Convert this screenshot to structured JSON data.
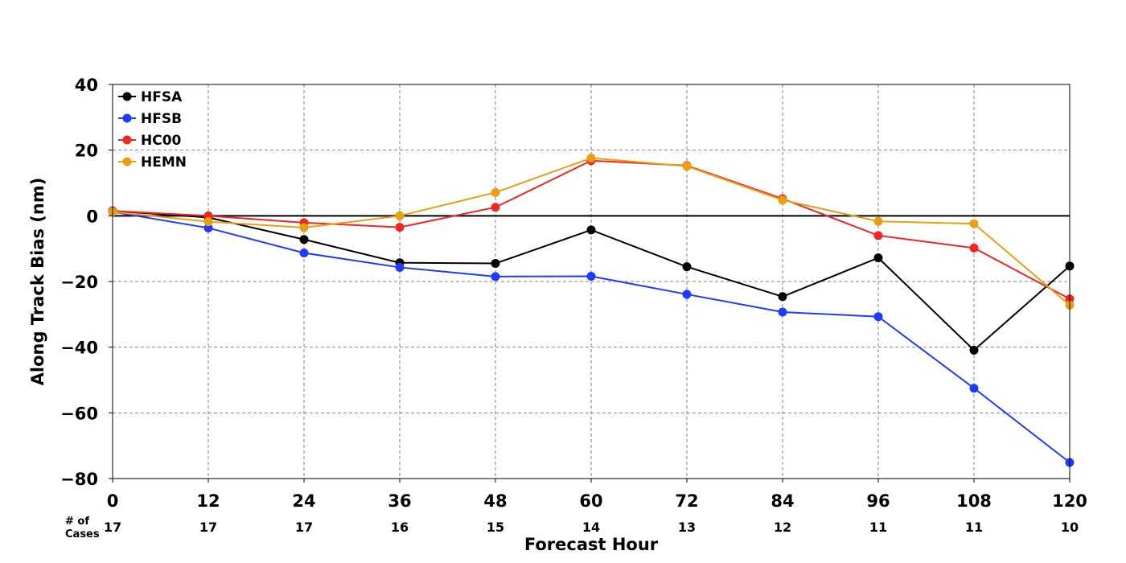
{
  "chart_data": {
    "type": "line",
    "xlabel": "Forecast Hour",
    "ylabel": "Along Track Bias (nm)",
    "x": [
      0,
      12,
      24,
      36,
      48,
      60,
      72,
      84,
      96,
      108,
      120
    ],
    "xlim": [
      0,
      120
    ],
    "ylim": [
      -80,
      40
    ],
    "yticks": [
      40,
      20,
      0,
      -20,
      -40,
      -60,
      -80
    ],
    "ytick_labels": [
      "40",
      "20",
      "0",
      "−20",
      "−40",
      "−60",
      "−80"
    ],
    "xtick_labels": [
      "0",
      "12",
      "24",
      "36",
      "48",
      "60",
      "72",
      "84",
      "96",
      "108",
      "120"
    ],
    "cases_label_line1": "# of",
    "cases_label_line2": "Cases",
    "cases": [
      "17",
      "17",
      "17",
      "16",
      "15",
      "14",
      "13",
      "12",
      "11",
      "11",
      "10"
    ],
    "grid": true,
    "zero_line": true,
    "legend_position": "top-left",
    "series": [
      {
        "name": "HFSA",
        "color": "#000000",
        "values": [
          1.5,
          -0.5,
          -7.2,
          -14.3,
          -14.5,
          -4.3,
          -15.5,
          -24.6,
          -12.8,
          -40.9,
          -15.3
        ]
      },
      {
        "name": "HFSB",
        "color": "#1f3bff",
        "values": [
          1.2,
          -3.7,
          -11.3,
          -15.7,
          -18.5,
          -18.4,
          -23.9,
          -29.3,
          -30.7,
          -52.5,
          -75.1
        ]
      },
      {
        "name": "HC00",
        "color": "#f22525",
        "values": [
          1.5,
          0.0,
          -2.1,
          -3.5,
          2.6,
          16.8,
          15.3,
          5.2,
          -6.0,
          -9.8,
          -25.3
        ]
      },
      {
        "name": "HEMN",
        "color": "#e8a010",
        "values": [
          1.2,
          -1.8,
          -3.6,
          0.0,
          7.1,
          17.6,
          15.1,
          4.8,
          -1.7,
          -2.4,
          -27.2
        ]
      }
    ]
  }
}
